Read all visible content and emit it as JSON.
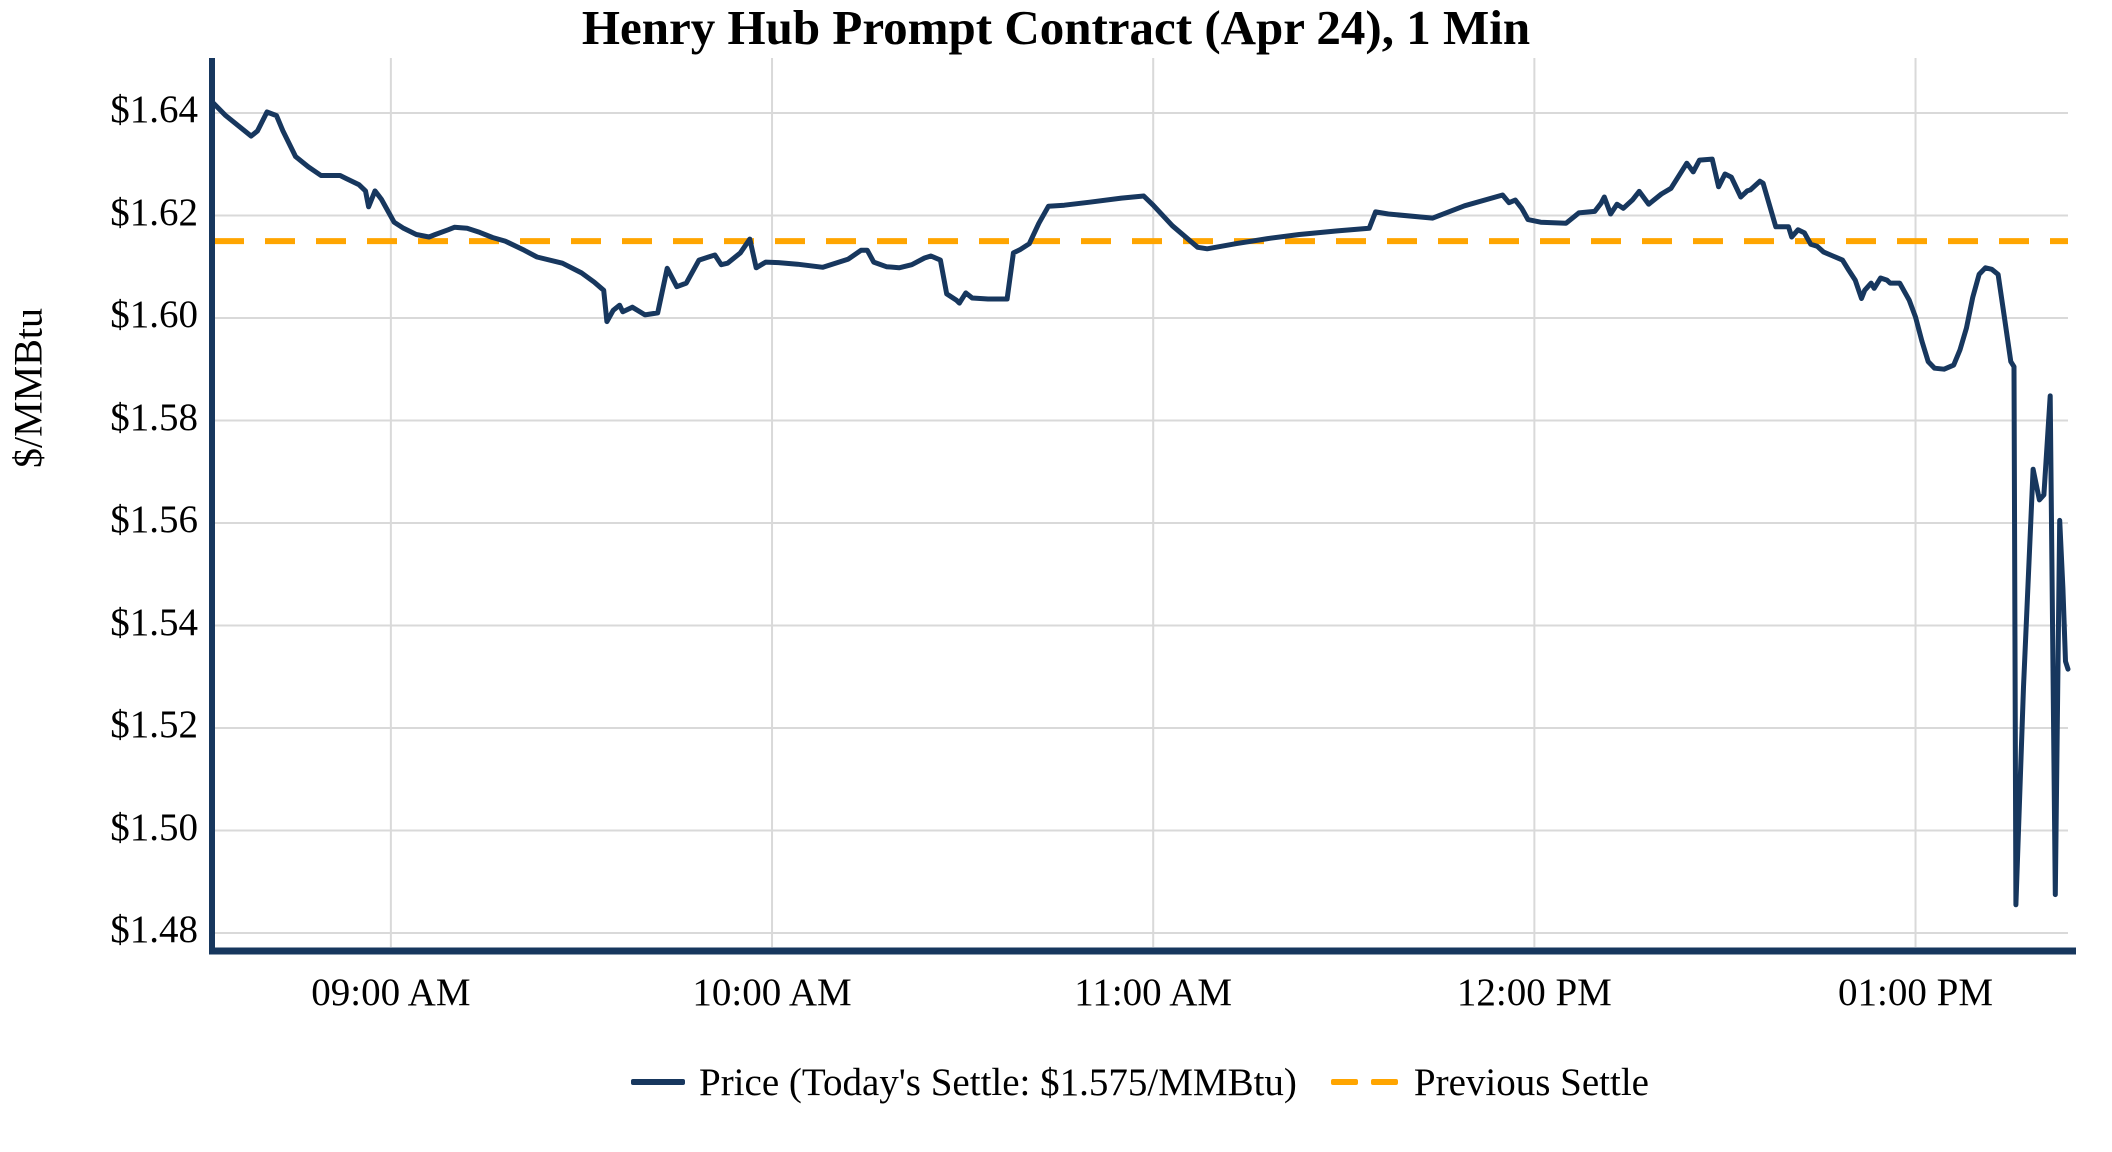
{
  "title": "Henry Hub Prompt Contract (Apr 24), 1 Min",
  "y_axis": {
    "label": "$/MMBtu"
  },
  "legend": {
    "price_label": "Price (Today's Settle: $1.575/MMBtu)",
    "settle_label": "Previous Settle"
  },
  "colors": {
    "price": "#17375E",
    "previous_settle": "#FFA500",
    "gridline": "#D9D9D9",
    "axis": "#17375E",
    "text": "#000000",
    "background": "#FFFFFF"
  },
  "chart_data": {
    "type": "line",
    "title": "Henry Hub Prompt Contract (Apr 24), 1 Min",
    "xlabel": "",
    "ylabel": "$/MMBtu",
    "grid": true,
    "legend_position": "bottom-center",
    "y_ticks": [
      1.48,
      1.5,
      1.52,
      1.54,
      1.56,
      1.58,
      1.6,
      1.62,
      1.64
    ],
    "y_tick_labels": [
      "$1.48",
      "$1.50",
      "$1.52",
      "$1.54",
      "$1.56",
      "$1.58",
      "$1.60",
      "$1.62",
      "$1.64"
    ],
    "ylim": [
      1.477,
      1.65
    ],
    "x_unit": "minutes after 08:32 AM",
    "x_domain": [
      0,
      292
    ],
    "x_ticks": [
      {
        "t": 28,
        "label": "09:00 AM"
      },
      {
        "t": 88,
        "label": "10:00 AM"
      },
      {
        "t": 148,
        "label": "11:00 AM"
      },
      {
        "t": 208,
        "label": "12:00 PM"
      },
      {
        "t": 268,
        "label": "01:00 PM"
      }
    ],
    "previous_settle": 1.615,
    "todays_settle": 1.575,
    "series": [
      {
        "name": "Price",
        "points": [
          [
            0,
            1.642
          ],
          [
            2,
            1.6395
          ],
          [
            4,
            1.6375
          ],
          [
            6,
            1.6355
          ],
          [
            7,
            1.6365
          ],
          [
            8.5,
            1.6402
          ],
          [
            10,
            1.6395
          ],
          [
            11,
            1.6365
          ],
          [
            13,
            1.6315
          ],
          [
            15,
            1.6295
          ],
          [
            17,
            1.6278
          ],
          [
            20,
            1.6278
          ],
          [
            21,
            1.6272
          ],
          [
            23,
            1.626
          ],
          [
            24,
            1.6248
          ],
          [
            24.5,
            1.6217
          ],
          [
            25.5,
            1.6248
          ],
          [
            26.5,
            1.6232
          ],
          [
            28.5,
            1.6187
          ],
          [
            30,
            1.6175
          ],
          [
            32,
            1.6163
          ],
          [
            34,
            1.6158
          ],
          [
            35,
            1.6163
          ],
          [
            37,
            1.6172
          ],
          [
            38,
            1.6177
          ],
          [
            40,
            1.6175
          ],
          [
            42,
            1.6167
          ],
          [
            44,
            1.6157
          ],
          [
            46,
            1.615
          ],
          [
            49,
            1.6132
          ],
          [
            51,
            1.6119
          ],
          [
            55,
            1.6107
          ],
          [
            58,
            1.6088
          ],
          [
            60,
            1.607
          ],
          [
            61.5,
            1.6054
          ],
          [
            62,
            1.5993
          ],
          [
            63,
            1.6015
          ],
          [
            64,
            1.6025
          ],
          [
            64.5,
            1.6012
          ],
          [
            66,
            1.6021
          ],
          [
            68,
            1.6006
          ],
          [
            70,
            1.601
          ],
          [
            71.5,
            1.6097
          ],
          [
            73,
            1.6061
          ],
          [
            74.5,
            1.6068
          ],
          [
            76.5,
            1.6113
          ],
          [
            78,
            1.6119
          ],
          [
            79,
            1.6123
          ],
          [
            80,
            1.6104
          ],
          [
            81,
            1.6107
          ],
          [
            83,
            1.6127
          ],
          [
            84.5,
            1.6154
          ],
          [
            85.5,
            1.6098
          ],
          [
            87,
            1.6109
          ],
          [
            89,
            1.6108
          ],
          [
            92,
            1.6105
          ],
          [
            96,
            1.6099
          ],
          [
            100,
            1.6115
          ],
          [
            102,
            1.6132
          ],
          [
            103,
            1.6132
          ],
          [
            104,
            1.6109
          ],
          [
            106,
            1.61
          ],
          [
            108,
            1.6098
          ],
          [
            110,
            1.6104
          ],
          [
            112,
            1.6117
          ],
          [
            113,
            1.6121
          ],
          [
            114.5,
            1.6113
          ],
          [
            115.5,
            1.6047
          ],
          [
            117,
            1.6035
          ],
          [
            117.5,
            1.6029
          ],
          [
            118.5,
            1.6049
          ],
          [
            119.5,
            1.6039
          ],
          [
            122,
            1.6037
          ],
          [
            125,
            1.6037
          ],
          [
            126,
            1.6127
          ],
          [
            127,
            1.6133
          ],
          [
            128.5,
            1.6145
          ],
          [
            130,
            1.6185
          ],
          [
            131.5,
            1.6218
          ],
          [
            134,
            1.622
          ],
          [
            138,
            1.6226
          ],
          [
            143,
            1.6234
          ],
          [
            146.5,
            1.6238
          ],
          [
            148,
            1.622
          ],
          [
            151,
            1.618
          ],
          [
            155,
            1.6138
          ],
          [
            156.5,
            1.6135
          ],
          [
            161,
            1.6145
          ],
          [
            166,
            1.6155
          ],
          [
            171,
            1.6163
          ],
          [
            177,
            1.617
          ],
          [
            182,
            1.6175
          ],
          [
            183,
            1.6207
          ],
          [
            185,
            1.6203
          ],
          [
            192,
            1.6195
          ],
          [
            197,
            1.6219
          ],
          [
            203,
            1.624
          ],
          [
            204,
            1.6225
          ],
          [
            205,
            1.623
          ],
          [
            206,
            1.6214
          ],
          [
            207,
            1.6192
          ],
          [
            209,
            1.6187
          ],
          [
            213,
            1.6185
          ],
          [
            215,
            1.6205
          ],
          [
            217.5,
            1.6208
          ],
          [
            218.5,
            1.6224
          ],
          [
            219,
            1.6236
          ],
          [
            220,
            1.6203
          ],
          [
            221,
            1.6222
          ],
          [
            222,
            1.6214
          ],
          [
            223.5,
            1.6231
          ],
          [
            224.5,
            1.6247
          ],
          [
            226,
            1.6222
          ],
          [
            228,
            1.6242
          ],
          [
            229.5,
            1.6253
          ],
          [
            232,
            1.6302
          ],
          [
            233,
            1.6285
          ],
          [
            234,
            1.6308
          ],
          [
            236,
            1.631
          ],
          [
            237,
            1.6256
          ],
          [
            238,
            1.6281
          ],
          [
            239,
            1.6275
          ],
          [
            240.5,
            1.6236
          ],
          [
            241.5,
            1.6248
          ],
          [
            242,
            1.625
          ],
          [
            243.5,
            1.6267
          ],
          [
            244,
            1.6263
          ],
          [
            246,
            1.6178
          ],
          [
            248,
            1.6178
          ],
          [
            248.5,
            1.6158
          ],
          [
            249.5,
            1.6172
          ],
          [
            250.5,
            1.6166
          ],
          [
            251.5,
            1.6144
          ],
          [
            252.5,
            1.614
          ],
          [
            253.5,
            1.6129
          ],
          [
            255,
            1.6121
          ],
          [
            256.5,
            1.6113
          ],
          [
            257.5,
            1.6093
          ],
          [
            258.5,
            1.6074
          ],
          [
            259.5,
            1.6038
          ],
          [
            260,
            1.6054
          ],
          [
            261,
            1.6068
          ],
          [
            261.5,
            1.6058
          ],
          [
            262.5,
            1.6078
          ],
          [
            263.5,
            1.6074
          ],
          [
            264,
            1.6068
          ],
          [
            265.5,
            1.6068
          ],
          [
            267,
            1.6035
          ],
          [
            268,
            1.6002
          ],
          [
            269,
            1.5955
          ],
          [
            270,
            1.5915
          ],
          [
            271,
            1.5902
          ],
          [
            272.5,
            1.59
          ],
          [
            274,
            1.5908
          ],
          [
            275,
            1.5938
          ],
          [
            276,
            1.598
          ],
          [
            277,
            1.604
          ],
          [
            278,
            1.6085
          ],
          [
            279,
            1.6098
          ],
          [
            280,
            1.6095
          ],
          [
            281,
            1.6085
          ],
          [
            282,
            1.6
          ],
          [
            283,
            1.5915
          ],
          [
            283.5,
            1.5905
          ],
          [
            283.8,
            1.4855
          ],
          [
            285,
            1.528
          ],
          [
            286.5,
            1.5705
          ],
          [
            287.5,
            1.5645
          ],
          [
            288.2,
            1.5655
          ],
          [
            289.2,
            1.5848
          ],
          [
            290,
            1.4875
          ],
          [
            290.7,
            1.5605
          ],
          [
            291.2,
            1.5473
          ],
          [
            291.6,
            1.533
          ],
          [
            292,
            1.5315
          ]
        ]
      }
    ]
  }
}
